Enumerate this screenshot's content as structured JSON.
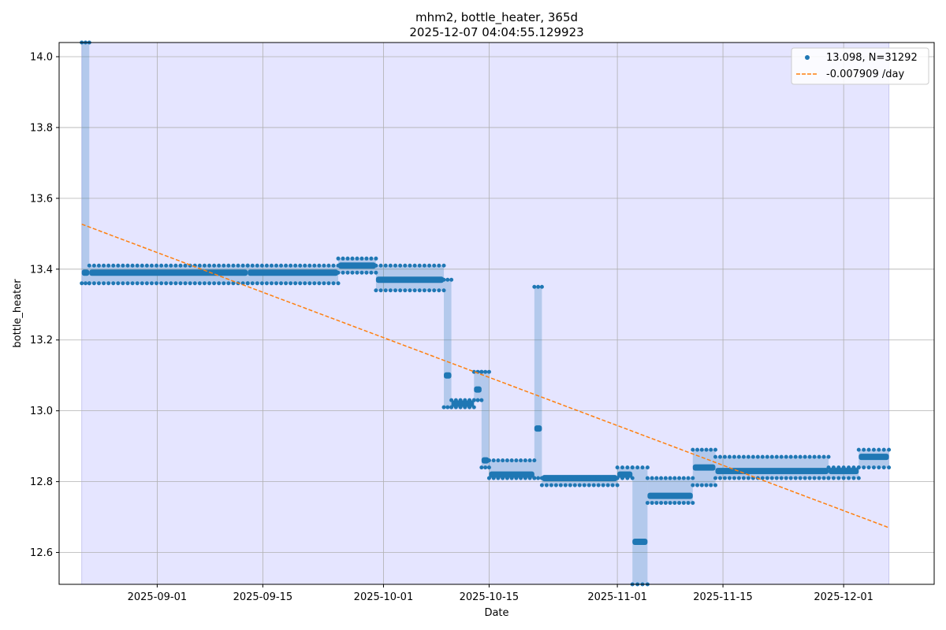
{
  "chart_data": {
    "type": "scatter",
    "title": "mhm2, bottle_heater, 365d",
    "subtitle": "2025-12-07 04:04:55.129923",
    "xlabel": "Date",
    "ylabel": "bottle_heater",
    "xlim": [
      "2025-08-19",
      "2025-12-13"
    ],
    "ylim": [
      12.51,
      14.04
    ],
    "x_ticks": [
      "2025-09-01",
      "2025-09-15",
      "2025-10-01",
      "2025-10-15",
      "2025-11-01",
      "2025-11-15",
      "2025-12-01"
    ],
    "y_ticks": [
      12.6,
      12.8,
      13.0,
      13.2,
      13.4,
      13.6,
      13.8,
      14.0
    ],
    "grid": true,
    "legend_position": "top-right",
    "shaded_span": [
      "2025-08-22",
      "2025-12-07"
    ],
    "colors": {
      "points": "#1f77b4",
      "trend": "#ff7f0e",
      "span": "#e5e5ff",
      "grid": "#b0b0b0"
    },
    "series": [
      {
        "name": "13.098, N=31292",
        "kind": "points",
        "segments": [
          {
            "x0": "2025-08-22",
            "x1": "2025-08-23",
            "y_min": 13.36,
            "y_max": 14.04,
            "y": 13.39
          },
          {
            "x0": "2025-08-23",
            "x1": "2025-09-13",
            "y_min": 13.36,
            "y_max": 13.41,
            "y": 13.39
          },
          {
            "x0": "2025-09-13",
            "x1": "2025-09-25",
            "y_min": 13.36,
            "y_max": 13.41,
            "y": 13.39
          },
          {
            "x0": "2025-09-25",
            "x1": "2025-09-30",
            "y_min": 13.39,
            "y_max": 13.43,
            "y": 13.41
          },
          {
            "x0": "2025-09-30",
            "x1": "2025-10-09",
            "y_min": 13.34,
            "y_max": 13.41,
            "y": 13.37
          },
          {
            "x0": "2025-10-09",
            "x1": "2025-10-10",
            "y_min": 13.01,
            "y_max": 13.37,
            "y": 13.1
          },
          {
            "x0": "2025-10-10",
            "x1": "2025-10-13",
            "y_min": 13.01,
            "y_max": 13.03,
            "y": 13.02
          },
          {
            "x0": "2025-10-13",
            "x1": "2025-10-14",
            "y_min": 13.03,
            "y_max": 13.11,
            "y": 13.06
          },
          {
            "x0": "2025-10-14",
            "x1": "2025-10-15",
            "y_min": 12.84,
            "y_max": 13.11,
            "y": 12.86
          },
          {
            "x0": "2025-10-15",
            "x1": "2025-10-21",
            "y_min": 12.81,
            "y_max": 12.86,
            "y": 12.82
          },
          {
            "x0": "2025-10-21",
            "x1": "2025-10-22",
            "y_min": 12.81,
            "y_max": 13.35,
            "y": 12.95
          },
          {
            "x0": "2025-10-22",
            "x1": "2025-11-01",
            "y_min": 12.79,
            "y_max": 12.81,
            "y": 12.81
          },
          {
            "x0": "2025-11-01",
            "x1": "2025-11-03",
            "y_min": 12.81,
            "y_max": 12.84,
            "y": 12.82
          },
          {
            "x0": "2025-11-03",
            "x1": "2025-11-05",
            "y_min": 12.51,
            "y_max": 12.84,
            "y": 12.63
          },
          {
            "x0": "2025-11-05",
            "x1": "2025-11-11",
            "y_min": 12.74,
            "y_max": 12.81,
            "y": 12.76
          },
          {
            "x0": "2025-11-11",
            "x1": "2025-11-14",
            "y_min": 12.79,
            "y_max": 12.89,
            "y": 12.84
          },
          {
            "x0": "2025-11-14",
            "x1": "2025-11-29",
            "y_min": 12.81,
            "y_max": 12.87,
            "y": 12.83
          },
          {
            "x0": "2025-11-29",
            "x1": "2025-12-03",
            "y_min": 12.81,
            "y_max": 12.84,
            "y": 12.83
          },
          {
            "x0": "2025-12-03",
            "x1": "2025-12-07",
            "y_min": 12.84,
            "y_max": 12.89,
            "y": 12.87
          }
        ]
      },
      {
        "name": "-0.007909 /day",
        "kind": "trend",
        "points": [
          {
            "x": "2025-08-22",
            "y": 13.527
          },
          {
            "x": "2025-12-07",
            "y": 12.67
          }
        ]
      }
    ]
  }
}
